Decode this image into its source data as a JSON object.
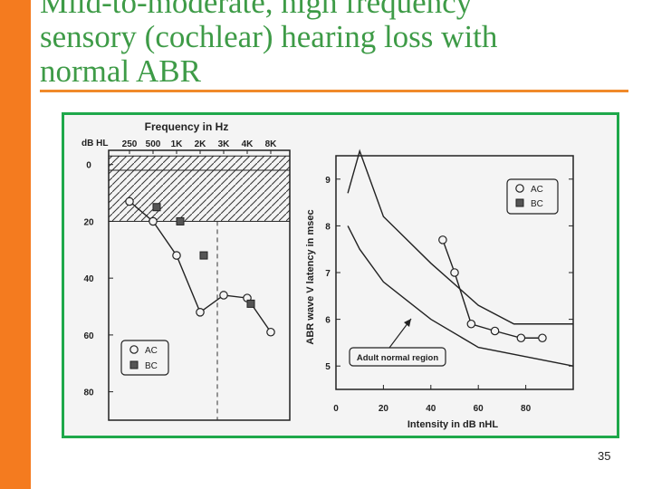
{
  "slide": {
    "title_lines": [
      "Mild-to-moderate, high frequency",
      "sensory (cochlear) hearing loss with",
      "normal ABR"
    ],
    "page_number": "35"
  },
  "colors": {
    "accent_bar": "#f47b1f",
    "title_text": "#3e9b47",
    "title_rule": "#f08a2a",
    "figure_border": "#1ea84a"
  },
  "chart_data": [
    {
      "type": "line",
      "title": "Frequency in Hz",
      "ylabel": "dB HL",
      "x_ticks": [
        "250",
        "500",
        "1K",
        "2K",
        "3K",
        "4K",
        "8K"
      ],
      "y_ticks": [
        "0",
        "20",
        "40",
        "60",
        "80"
      ],
      "y_reversed": true,
      "ylim": [
        -5,
        90
      ],
      "shaded_region": {
        "from": -3,
        "to": 20
      },
      "series": [
        {
          "name": "AC",
          "marker": "open-circle",
          "x": [
            "250",
            "500",
            "1K",
            "2K",
            "3K",
            "4K",
            "8K"
          ],
          "values": [
            13,
            20,
            32,
            52,
            46,
            47,
            59
          ]
        },
        {
          "name": "BC",
          "marker": "filled-square",
          "x": [
            "500",
            "1K",
            "2K",
            "4K"
          ],
          "values": [
            15,
            20,
            32,
            49
          ]
        }
      ],
      "legend": {
        "position": "bottom-left",
        "items": [
          "AC",
          "BC"
        ]
      }
    },
    {
      "type": "line",
      "xlabel": "Intensity in dB nHL",
      "ylabel": "ABR wave V latency in msec",
      "x_ticks": [
        "0",
        "20",
        "40",
        "60",
        "80"
      ],
      "y_ticks": [
        "5",
        "6",
        "7",
        "8",
        "9"
      ],
      "xlim": [
        0,
        100
      ],
      "ylim": [
        4.5,
        9.5
      ],
      "series": [
        {
          "name": "AC",
          "marker": "open-circle",
          "x": [
            45,
            50,
            57,
            67,
            78,
            87
          ],
          "values": [
            7.7,
            7.0,
            5.9,
            5.75,
            5.6,
            5.6
          ]
        }
      ],
      "normal_region": {
        "upper": {
          "x": [
            5,
            10,
            20,
            40,
            60,
            75,
            100
          ],
          "values": [
            8.7,
            9.6,
            8.2,
            7.2,
            6.3,
            5.9,
            5.9
          ]
        },
        "lower": {
          "x": [
            5,
            10,
            20,
            30,
            40,
            60,
            100
          ],
          "values": [
            8.0,
            7.5,
            6.8,
            6.4,
            6.0,
            5.4,
            5.0
          ]
        }
      },
      "annotation": "Adult normal region",
      "legend": {
        "position": "top-right",
        "items": [
          "AC",
          "BC"
        ]
      }
    }
  ]
}
